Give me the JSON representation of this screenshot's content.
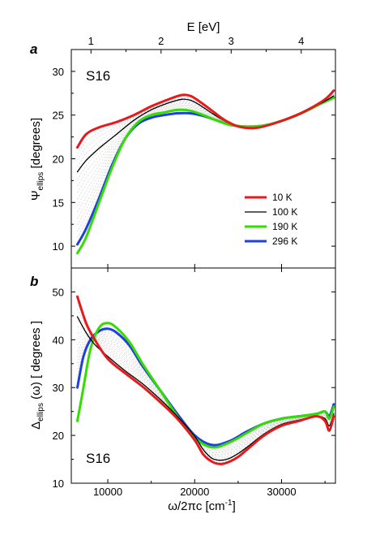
{
  "chart_data": [
    {
      "type": "line",
      "panel_label": "a",
      "sample_label": "S16",
      "xlabel": "",
      "top_axis_label": "E [eV]",
      "ylabel": "Ψ_ellips [degrees]",
      "xlim": [
        5800,
        36200
      ],
      "ylim": [
        7.5,
        32.5
      ],
      "yticks": [
        10,
        15,
        20,
        25,
        30
      ],
      "top_ticks_ev": [
        1,
        2,
        3,
        4
      ],
      "ev_to_cm": 8065.54,
      "legend_position": "center-right",
      "series": [
        {
          "name": "10 K",
          "color": "#e41a1c",
          "width": 3,
          "x": [
            6500,
            7500,
            9000,
            11000,
            13000,
            15000,
            17000,
            18500,
            19500,
            20500,
            22000,
            23500,
            25000,
            26500,
            27500,
            29000,
            31000,
            33000,
            35000,
            36000
          ],
          "y": [
            21.3,
            22.8,
            23.6,
            24.2,
            25.0,
            26.0,
            26.8,
            27.3,
            27.2,
            26.6,
            25.5,
            24.4,
            23.7,
            23.5,
            23.6,
            24.0,
            24.7,
            25.6,
            26.8,
            27.8
          ]
        },
        {
          "name": "100 K",
          "color": "#000000",
          "width": 1.3,
          "x": [
            6500,
            7500,
            9000,
            11000,
            13000,
            15000,
            17000,
            18500,
            19500,
            20500,
            22000,
            23500,
            25000,
            26500,
            27500,
            29000,
            31000,
            33000,
            35000,
            36000
          ],
          "y": [
            18.5,
            19.8,
            21.2,
            22.8,
            24.4,
            25.6,
            26.4,
            26.8,
            26.7,
            26.2,
            25.2,
            24.3,
            23.7,
            23.5,
            23.6,
            24.0,
            24.7,
            25.6,
            26.6,
            27.2
          ]
        },
        {
          "name": "190 K",
          "color": "#33dd00",
          "width": 3,
          "x": [
            6500,
            7500,
            9000,
            10500,
            12000,
            13500,
            15000,
            16500,
            18000,
            19500,
            21000,
            22500,
            24000,
            25500,
            27000,
            28500,
            30500,
            32500,
            34500,
            36000
          ],
          "y": [
            9.2,
            11.0,
            15.0,
            19.0,
            22.3,
            24.2,
            25.0,
            25.3,
            25.6,
            25.5,
            25.0,
            24.4,
            23.9,
            23.7,
            23.7,
            23.9,
            24.5,
            25.3,
            26.3,
            27.0
          ]
        },
        {
          "name": "296 K",
          "color": "#1f3fe0",
          "width": 3,
          "x": [
            6500,
            7500,
            9000,
            10500,
            12000,
            13500,
            15000,
            16500,
            18000,
            19500,
            21000,
            22500,
            24000,
            25500,
            27000,
            28500,
            30500,
            32500,
            34500,
            36000
          ],
          "y": [
            10.2,
            12.0,
            15.5,
            19.3,
            22.3,
            24.0,
            24.7,
            25.0,
            25.2,
            25.2,
            24.9,
            24.4,
            23.9,
            23.7,
            23.7,
            23.9,
            24.5,
            25.3,
            26.3,
            27.0
          ]
        }
      ]
    },
    {
      "type": "line",
      "panel_label": "b",
      "sample_label": "S16",
      "xlabel": "ω/2πc [cm⁻¹]",
      "ylabel": "Δ_ellips (ω) [ degrees ]",
      "xlim": [
        5800,
        36200
      ],
      "ylim": [
        10,
        55
      ],
      "xticks": [
        10000,
        20000,
        30000
      ],
      "yticks": [
        10,
        20,
        30,
        40,
        50
      ],
      "series": [
        {
          "name": "10 K",
          "color": "#e41a1c",
          "width": 3,
          "x": [
            6500,
            7500,
            8500,
            10000,
            12000,
            14000,
            16000,
            18000,
            20000,
            21000,
            22000,
            23000,
            24000,
            25000,
            26000,
            28000,
            30000,
            32000,
            34000,
            35000,
            35500,
            36000
          ],
          "y": [
            49.0,
            43.5,
            40.0,
            36.0,
            33.0,
            30.2,
            27.0,
            23.5,
            19.0,
            16.0,
            14.5,
            14.0,
            14.5,
            15.5,
            17.0,
            20.0,
            22.0,
            23.0,
            24.0,
            23.0,
            21.0,
            24.0
          ]
        },
        {
          "name": "100 K",
          "color": "#000000",
          "width": 1.3,
          "x": [
            6500,
            7500,
            8500,
            10000,
            12000,
            14000,
            16000,
            18000,
            20000,
            21000,
            22000,
            23000,
            24000,
            25000,
            26000,
            28000,
            30000,
            32000,
            34000,
            35000,
            35500,
            36000
          ],
          "y": [
            44.8,
            41.5,
            39.0,
            36.5,
            33.5,
            30.8,
            27.6,
            24.0,
            19.8,
            17.0,
            15.2,
            14.8,
            15.2,
            16.2,
            17.5,
            20.3,
            22.3,
            23.2,
            24.0,
            23.5,
            22.0,
            24.5
          ]
        },
        {
          "name": "190 K",
          "color": "#33dd00",
          "width": 3,
          "x": [
            6500,
            7200,
            8000,
            9000,
            10000,
            11000,
            12500,
            14000,
            16000,
            18000,
            20000,
            22000,
            24000,
            26000,
            28000,
            30000,
            32000,
            34000,
            35000,
            35500,
            36000
          ],
          "y": [
            23.0,
            30.0,
            38.0,
            42.5,
            43.5,
            42.5,
            39.5,
            35.0,
            29.5,
            24.0,
            19.5,
            17.5,
            18.5,
            20.5,
            22.5,
            23.5,
            24.0,
            24.5,
            25.0,
            23.5,
            26.0
          ]
        },
        {
          "name": "296 K",
          "color": "#1f3fe0",
          "width": 3,
          "x": [
            6500,
            7200,
            8000,
            9000,
            10000,
            11000,
            12500,
            14000,
            16000,
            18000,
            20000,
            22000,
            24000,
            26000,
            28000,
            30000,
            32000,
            34000,
            35000,
            35500,
            36000
          ],
          "y": [
            30.0,
            36.5,
            40.0,
            41.8,
            42.3,
            41.5,
            38.8,
            34.5,
            29.5,
            24.5,
            20.0,
            18.0,
            18.8,
            20.8,
            22.5,
            23.5,
            24.0,
            24.5,
            25.0,
            24.0,
            26.5
          ]
        }
      ]
    }
  ]
}
